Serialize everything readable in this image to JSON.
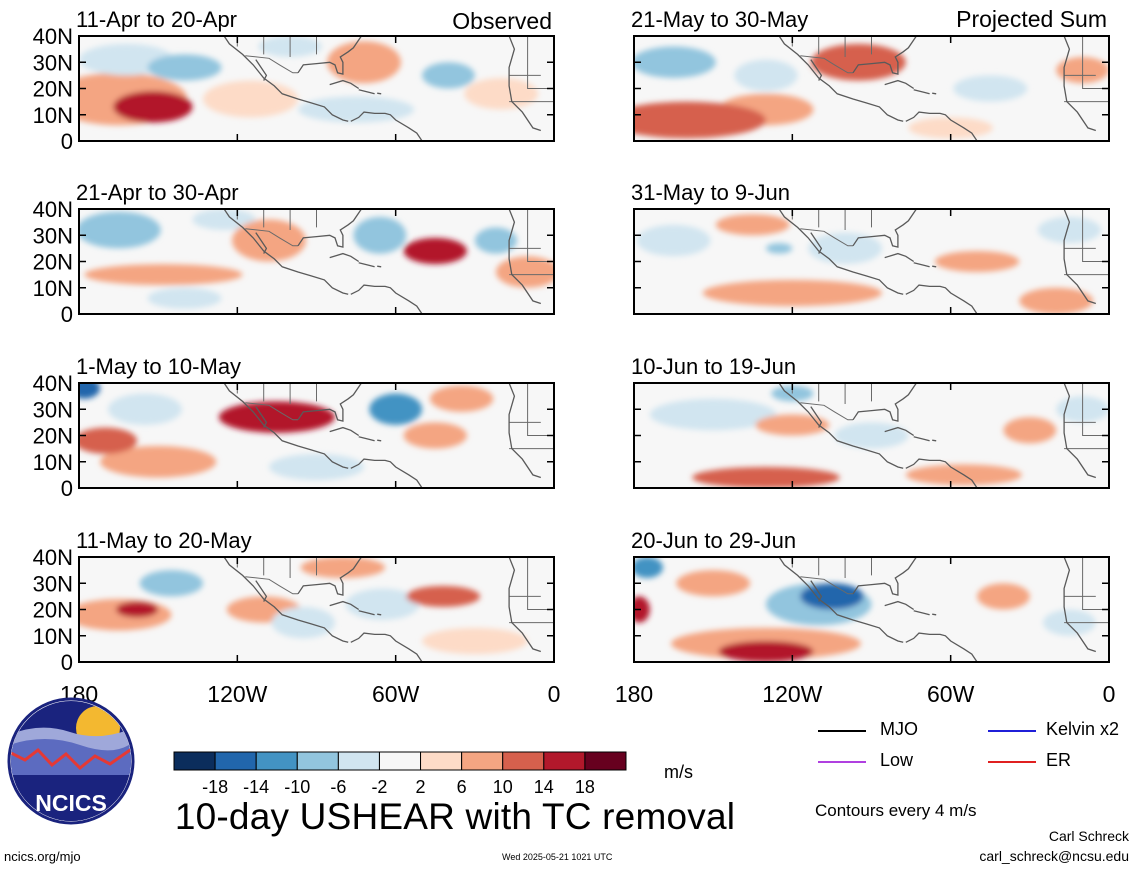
{
  "header": {
    "left_label": "Observed",
    "right_label": "Projected Sum"
  },
  "lat_ticks": [
    "40N",
    "30N",
    "20N",
    "10N",
    "0"
  ],
  "lon_ticks": [
    "180",
    "120W",
    "60W",
    "0"
  ],
  "colorbar": {
    "ticks": [
      "-18",
      "-14",
      "-10",
      "-6",
      "-2",
      "2",
      "6",
      "10",
      "14",
      "18"
    ],
    "colors": [
      "#0b2d5c",
      "#2166ac",
      "#4393c3",
      "#92c5de",
      "#d1e5f0",
      "#f7f7f7",
      "#fddbc7",
      "#f4a582",
      "#d6604d",
      "#b2182b",
      "#67001f"
    ],
    "units": "m/s"
  },
  "legend": {
    "items": [
      {
        "label": "MJO",
        "color": "#000000"
      },
      {
        "label": "Kelvin x2",
        "color": "#1f1fd8"
      },
      {
        "label": "Low",
        "color": "#b040e0"
      },
      {
        "label": "ER",
        "color": "#e02020"
      }
    ],
    "note": "Contours every 4 m/s"
  },
  "main_title": "10-day USHEAR with TC removal",
  "footer": {
    "url": "ncics.org/mjo",
    "timestamp": "Wed 2025-05-21 1021 UTC",
    "author_name": "Carl Schreck",
    "author_email": "carl_schreck@ncsu.edu"
  },
  "logo": {
    "text": "NCICS"
  },
  "chart_data": {
    "type": "heatmap",
    "variable": "10-day USHEAR with TC removal",
    "units": "m/s",
    "lat_range": [
      0,
      40
    ],
    "lon_range": [
      "180",
      "0"
    ],
    "contour_interval": 4,
    "observed": [
      {
        "period": "11-Apr to 20-Apr",
        "anomalies": [
          {
            "lon": 152,
            "lat": 13,
            "value": 14,
            "rx": 15,
            "ry": 6
          },
          {
            "lon": 165,
            "lat": 16,
            "value": 6,
            "rx": 26,
            "ry": 10
          },
          {
            "lon": 140,
            "lat": 28,
            "value": -10,
            "rx": 14,
            "ry": 5
          },
          {
            "lon": 162,
            "lat": 31,
            "value": -6,
            "rx": 18,
            "ry": 6
          },
          {
            "lon": 115,
            "lat": 16,
            "value": 4,
            "rx": 18,
            "ry": 7
          },
          {
            "lon": 72,
            "lat": 30,
            "value": 6,
            "rx": 14,
            "ry": 8
          },
          {
            "lon": 75,
            "lat": 12,
            "value": -6,
            "rx": 22,
            "ry": 5
          },
          {
            "lon": 40,
            "lat": 25,
            "value": -8,
            "rx": 10,
            "ry": 5
          },
          {
            "lon": 20,
            "lat": 18,
            "value": 5,
            "rx": 14,
            "ry": 6
          },
          {
            "lon": 100,
            "lat": 36,
            "value": -4,
            "rx": 12,
            "ry": 4
          }
        ]
      },
      {
        "period": "21-Apr to 30-Apr",
        "anomalies": [
          {
            "lon": 45,
            "lat": 24,
            "value": 16,
            "rx": 12,
            "ry": 5
          },
          {
            "lon": 148,
            "lat": 15,
            "value": 8,
            "rx": 30,
            "ry": 4
          },
          {
            "lon": 108,
            "lat": 28,
            "value": 8,
            "rx": 14,
            "ry": 8
          },
          {
            "lon": 165,
            "lat": 32,
            "value": -10,
            "rx": 16,
            "ry": 7
          },
          {
            "lon": 66,
            "lat": 30,
            "value": -10,
            "rx": 10,
            "ry": 7
          },
          {
            "lon": 22,
            "lat": 28,
            "value": -10,
            "rx": 8,
            "ry": 5
          },
          {
            "lon": 125,
            "lat": 36,
            "value": -6,
            "rx": 12,
            "ry": 4
          },
          {
            "lon": 140,
            "lat": 6,
            "value": -4,
            "rx": 14,
            "ry": 4
          },
          {
            "lon": 10,
            "lat": 16,
            "value": 6,
            "rx": 12,
            "ry": 6
          }
        ]
      },
      {
        "period": "1-May to 10-May",
        "anomalies": [
          {
            "lon": 105,
            "lat": 27,
            "value": 16,
            "rx": 22,
            "ry": 6
          },
          {
            "lon": 170,
            "lat": 18,
            "value": 12,
            "rx": 12,
            "ry": 5
          },
          {
            "lon": 150,
            "lat": 10,
            "value": 8,
            "rx": 22,
            "ry": 6
          },
          {
            "lon": 45,
            "lat": 20,
            "value": 8,
            "rx": 12,
            "ry": 5
          },
          {
            "lon": 60,
            "lat": 30,
            "value": -12,
            "rx": 10,
            "ry": 6
          },
          {
            "lon": 178,
            "lat": 38,
            "value": -16,
            "rx": 6,
            "ry": 4
          },
          {
            "lon": 155,
            "lat": 30,
            "value": -6,
            "rx": 14,
            "ry": 6
          },
          {
            "lon": 35,
            "lat": 34,
            "value": 6,
            "rx": 12,
            "ry": 5
          },
          {
            "lon": 90,
            "lat": 8,
            "value": -4,
            "rx": 18,
            "ry": 5
          }
        ]
      },
      {
        "period": "11-May to 20-May",
        "anomalies": [
          {
            "lon": 158,
            "lat": 20,
            "value": 16,
            "rx": 8,
            "ry": 3
          },
          {
            "lon": 165,
            "lat": 18,
            "value": 8,
            "rx": 20,
            "ry": 6
          },
          {
            "lon": 42,
            "lat": 25,
            "value": 10,
            "rx": 14,
            "ry": 4
          },
          {
            "lon": 110,
            "lat": 20,
            "value": 6,
            "rx": 14,
            "ry": 5
          },
          {
            "lon": 145,
            "lat": 30,
            "value": -10,
            "rx": 12,
            "ry": 5
          },
          {
            "lon": 95,
            "lat": 15,
            "value": -6,
            "rx": 12,
            "ry": 6
          },
          {
            "lon": 65,
            "lat": 22,
            "value": -4,
            "rx": 14,
            "ry": 6
          },
          {
            "lon": 80,
            "lat": 36,
            "value": 6,
            "rx": 16,
            "ry": 4
          },
          {
            "lon": 30,
            "lat": 8,
            "value": 4,
            "rx": 20,
            "ry": 5
          }
        ]
      }
    ],
    "projected": [
      {
        "period": "21-May to 30-May",
        "anomalies": [
          {
            "lon": 95,
            "lat": 30,
            "value": 12,
            "rx": 18,
            "ry": 7
          },
          {
            "lon": 160,
            "lat": 8,
            "value": 10,
            "rx": 30,
            "ry": 7
          },
          {
            "lon": 130,
            "lat": 12,
            "value": 6,
            "rx": 18,
            "ry": 6
          },
          {
            "lon": 165,
            "lat": 30,
            "value": -8,
            "rx": 16,
            "ry": 6
          },
          {
            "lon": 130,
            "lat": 25,
            "value": -6,
            "rx": 12,
            "ry": 6
          },
          {
            "lon": 45,
            "lat": 20,
            "value": -6,
            "rx": 14,
            "ry": 5
          },
          {
            "lon": 10,
            "lat": 27,
            "value": 6,
            "rx": 10,
            "ry": 5
          },
          {
            "lon": 60,
            "lat": 5,
            "value": 4,
            "rx": 16,
            "ry": 4
          }
        ]
      },
      {
        "period": "31-May to 9-Jun",
        "anomalies": [
          {
            "lon": 135,
            "lat": 34,
            "value": 8,
            "rx": 14,
            "ry": 4
          },
          {
            "lon": 50,
            "lat": 20,
            "value": 8,
            "rx": 16,
            "ry": 4
          },
          {
            "lon": 120,
            "lat": 8,
            "value": 6,
            "rx": 34,
            "ry": 5
          },
          {
            "lon": 20,
            "lat": 5,
            "value": 6,
            "rx": 14,
            "ry": 5
          },
          {
            "lon": 165,
            "lat": 28,
            "value": -4,
            "rx": 14,
            "ry": 6
          },
          {
            "lon": 100,
            "lat": 25,
            "value": -6,
            "rx": 14,
            "ry": 6
          },
          {
            "lon": 125,
            "lat": 25,
            "value": -8,
            "rx": 5,
            "ry": 2
          },
          {
            "lon": 15,
            "lat": 32,
            "value": -6,
            "rx": 12,
            "ry": 5
          }
        ]
      },
      {
        "period": "10-Jun to 19-Jun",
        "anomalies": [
          {
            "lon": 120,
            "lat": 36,
            "value": -10,
            "rx": 8,
            "ry": 3
          },
          {
            "lon": 150,
            "lat": 28,
            "value": -4,
            "rx": 24,
            "ry": 6
          },
          {
            "lon": 120,
            "lat": 24,
            "value": 6,
            "rx": 14,
            "ry": 4
          },
          {
            "lon": 130,
            "lat": 4,
            "value": 10,
            "rx": 28,
            "ry": 4
          },
          {
            "lon": 55,
            "lat": 5,
            "value": 6,
            "rx": 22,
            "ry": 4
          },
          {
            "lon": 30,
            "lat": 22,
            "value": 6,
            "rx": 10,
            "ry": 5
          },
          {
            "lon": 90,
            "lat": 20,
            "value": -4,
            "rx": 14,
            "ry": 5
          },
          {
            "lon": 10,
            "lat": 30,
            "value": -4,
            "rx": 10,
            "ry": 5
          }
        ]
      },
      {
        "period": "20-Jun to 29-Jun",
        "anomalies": [
          {
            "lon": 105,
            "lat": 25,
            "value": -18,
            "rx": 12,
            "ry": 5
          },
          {
            "lon": 110,
            "lat": 22,
            "value": -10,
            "rx": 20,
            "ry": 8
          },
          {
            "lon": 175,
            "lat": 36,
            "value": -14,
            "rx": 6,
            "ry": 4
          },
          {
            "lon": 130,
            "lat": 4,
            "value": 16,
            "rx": 18,
            "ry": 4
          },
          {
            "lon": 130,
            "lat": 7,
            "value": 8,
            "rx": 36,
            "ry": 6
          },
          {
            "lon": 178,
            "lat": 20,
            "value": 14,
            "rx": 4,
            "ry": 5
          },
          {
            "lon": 40,
            "lat": 25,
            "value": 8,
            "rx": 10,
            "ry": 5
          },
          {
            "lon": 150,
            "lat": 30,
            "value": 6,
            "rx": 14,
            "ry": 5
          },
          {
            "lon": 15,
            "lat": 15,
            "value": -6,
            "rx": 10,
            "ry": 5
          }
        ]
      }
    ]
  }
}
